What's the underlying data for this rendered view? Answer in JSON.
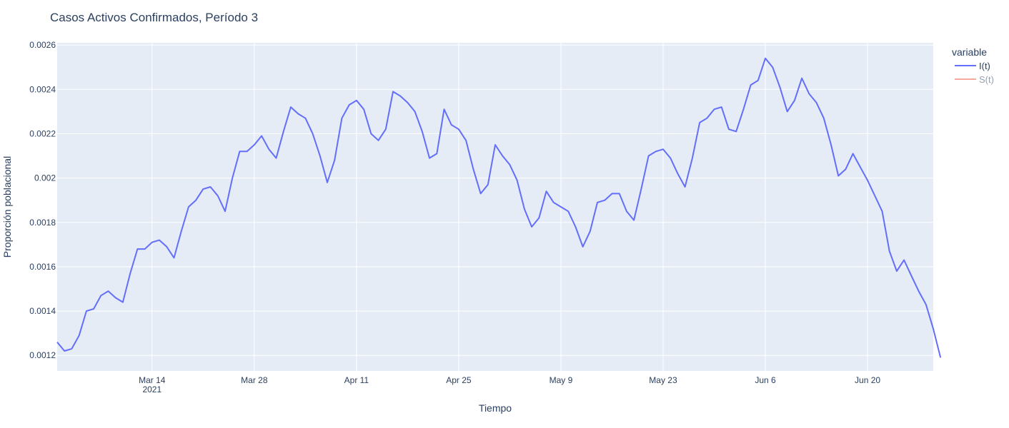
{
  "chart_data": {
    "type": "line",
    "title": "Casos Activos Confirmados, Período 3",
    "xlabel": "Tiempo",
    "ylabel": "Proporción poblacional",
    "xlim": [
      "2021-03-01",
      "2021-06-29"
    ],
    "ylim": [
      0.00113,
      0.00261
    ],
    "x_ticks": [
      {
        "date": "2021-03-14",
        "label": "Mar 14",
        "sublabel": "2021"
      },
      {
        "date": "2021-03-28",
        "label": "Mar 28"
      },
      {
        "date": "2021-04-11",
        "label": "Apr 11"
      },
      {
        "date": "2021-04-25",
        "label": "Apr 25"
      },
      {
        "date": "2021-05-09",
        "label": "May 9"
      },
      {
        "date": "2021-05-23",
        "label": "May 23"
      },
      {
        "date": "2021-06-06",
        "label": "Jun 6"
      },
      {
        "date": "2021-06-20",
        "label": "Jun 20"
      }
    ],
    "y_ticks": [
      {
        "value": 0.0012,
        "label": "0.0012"
      },
      {
        "value": 0.0014,
        "label": "0.0014"
      },
      {
        "value": 0.0016,
        "label": "0.0016"
      },
      {
        "value": 0.0018,
        "label": "0.0018"
      },
      {
        "value": 0.002,
        "label": "0.002"
      },
      {
        "value": 0.0022,
        "label": "0.0022"
      },
      {
        "value": 0.0024,
        "label": "0.0024"
      },
      {
        "value": 0.0026,
        "label": "0.0026"
      }
    ],
    "grid": true,
    "legend": {
      "title": "variable",
      "placement": "right"
    },
    "start_date": "2021-03-01",
    "series": [
      {
        "name": "I(t)",
        "color": "#636efa",
        "visible": true,
        "values": [
          0.00126,
          0.00122,
          0.00123,
          0.00129,
          0.0014,
          0.00141,
          0.00147,
          0.00149,
          0.00146,
          0.00144,
          0.00157,
          0.00168,
          0.00168,
          0.00171,
          0.00172,
          0.00169,
          0.00164,
          0.00176,
          0.00187,
          0.0019,
          0.00195,
          0.00196,
          0.00192,
          0.00185,
          0.002,
          0.00212,
          0.00212,
          0.00215,
          0.00219,
          0.00213,
          0.00209,
          0.00221,
          0.00232,
          0.00229,
          0.00227,
          0.0022,
          0.0021,
          0.00198,
          0.00208,
          0.00227,
          0.00233,
          0.00235,
          0.00231,
          0.0022,
          0.00217,
          0.00222,
          0.00239,
          0.00237,
          0.00234,
          0.0023,
          0.00221,
          0.00209,
          0.00211,
          0.00231,
          0.00224,
          0.00222,
          0.00217,
          0.00204,
          0.00193,
          0.00197,
          0.00215,
          0.0021,
          0.00206,
          0.00199,
          0.00186,
          0.00178,
          0.00182,
          0.00194,
          0.00189,
          0.00187,
          0.00185,
          0.00178,
          0.00169,
          0.00176,
          0.00189,
          0.0019,
          0.00193,
          0.00193,
          0.00185,
          0.00181,
          0.00195,
          0.0021,
          0.00212,
          0.00213,
          0.00209,
          0.00202,
          0.00196,
          0.00209,
          0.00225,
          0.00227,
          0.00231,
          0.00232,
          0.00222,
          0.00221,
          0.00231,
          0.00242,
          0.00244,
          0.00254,
          0.0025,
          0.00241,
          0.0023,
          0.00235,
          0.00245,
          0.00238,
          0.00234,
          0.00227,
          0.00215,
          0.00201,
          0.00204,
          0.00211,
          0.00205,
          0.00199,
          0.00192,
          0.00185,
          0.00167,
          0.00158,
          0.00163,
          0.00156,
          0.00149,
          0.00143,
          0.00132,
          0.00119
        ]
      },
      {
        "name": "S(t)",
        "color": "#ef553b",
        "visible": false,
        "values": []
      }
    ]
  }
}
